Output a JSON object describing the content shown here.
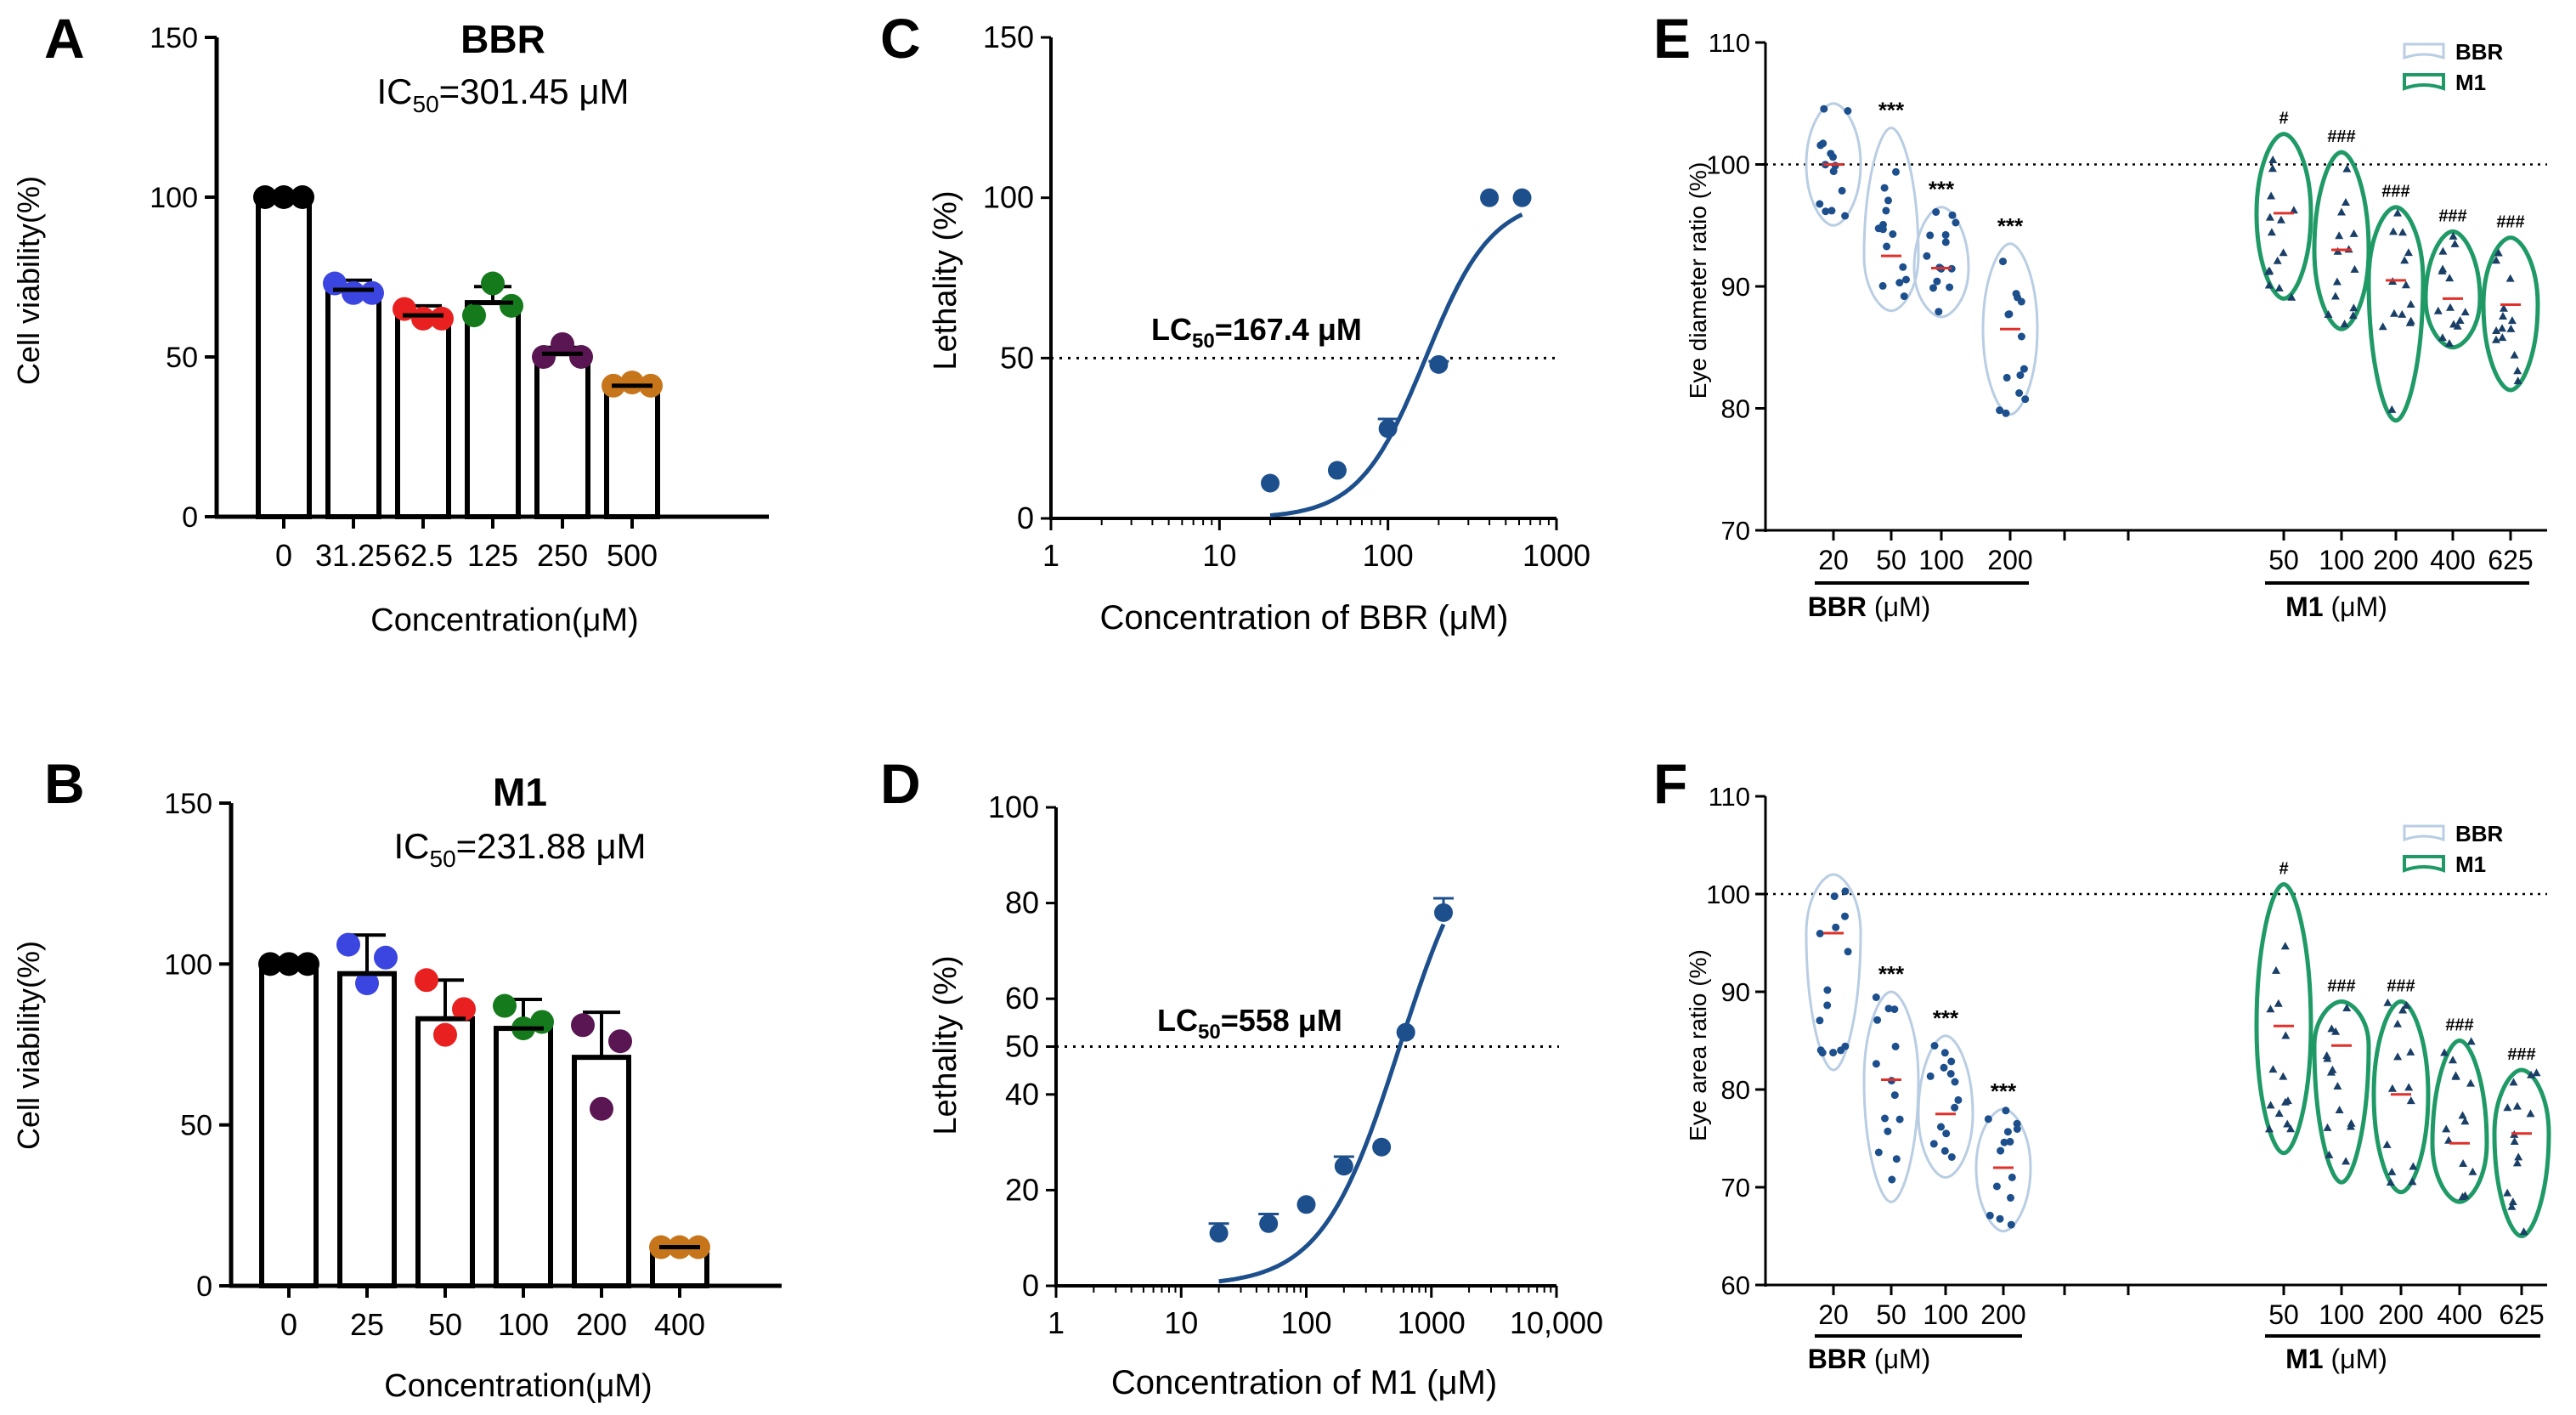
{
  "panels": {
    "A": {
      "letter": "A",
      "title": "BBR",
      "ic50_prefix": "IC",
      "ic50_sub": "50",
      "ic50_value": "=301.45 μM",
      "ylabel": "Cell viability(%)",
      "xlabel": "Concentration(μM)",
      "yticks": [
        "0",
        "50",
        "100",
        "150"
      ]
    },
    "B": {
      "letter": "B",
      "title": "M1",
      "ic50_prefix": "IC",
      "ic50_sub": "50",
      "ic50_value": "=231.88 μM",
      "ylabel": "Cell viability(%)",
      "xlabel": "Concentration(μM)",
      "yticks": [
        "0",
        "50",
        "100",
        "150"
      ]
    },
    "C": {
      "letter": "C",
      "ylabel": "Lethality (%)",
      "xlabel": "Concentration of BBR (μM)",
      "lc50_prefix": "LC",
      "lc50_sub": "50",
      "lc50_value": "=167.4 μM",
      "xticks": [
        "1",
        "10",
        "100",
        "1000"
      ],
      "yticks": [
        "0",
        "50",
        "100",
        "150"
      ]
    },
    "D": {
      "letter": "D",
      "ylabel": "Lethality (%)",
      "xlabel": "Concentration of M1 (μM)",
      "lc50_prefix": "LC",
      "lc50_sub": "50",
      "lc50_value": "=558 μM",
      "xticks": [
        "1",
        "10",
        "100",
        "1000",
        "10,000"
      ],
      "yticks": [
        "0",
        "20",
        "40",
        "50",
        "60",
        "80",
        "100"
      ]
    },
    "E": {
      "letter": "E",
      "ylabel": "Eye diameter ratio (%)",
      "yticks": [
        "70",
        "80",
        "90",
        "100",
        "110"
      ],
      "group1": "BBR",
      "group2": "M1",
      "unit": " (μM)",
      "legend": [
        "BBR",
        "M1"
      ]
    },
    "F": {
      "letter": "F",
      "ylabel": "Eye area ratio (%)",
      "yticks": [
        "60",
        "70",
        "80",
        "90",
        "100",
        "110"
      ],
      "group1": "BBR",
      "group2": "M1",
      "unit": " (μM)",
      "legend": [
        "BBR",
        "M1"
      ]
    }
  },
  "colors": {
    "black": "#000000",
    "blue": "#3b45e0",
    "red": "#e8201f",
    "green": "#157a1c",
    "purple": "#5a1652",
    "orange": "#c7751a",
    "navy": "#1c4f8c",
    "bbr_violin": "#b9cde3",
    "m1_violin": "#1f9a66",
    "median": "#e0302a"
  },
  "chart_data": [
    {
      "id": "A",
      "type": "bar",
      "title": "BBR",
      "subtitle": "IC50=301.45 μM",
      "xlabel": "Concentration(μM)",
      "ylabel": "Cell viability(%)",
      "ylim": [
        0,
        150
      ],
      "categories": [
        "0",
        "31.25",
        "62.5",
        "125",
        "250",
        "500"
      ],
      "values": [
        100,
        71,
        63,
        67,
        51,
        41
      ],
      "errors": [
        1,
        3,
        3,
        5,
        2,
        1
      ],
      "points": [
        [
          100,
          100,
          100
        ],
        [
          73,
          70,
          70
        ],
        [
          65,
          62,
          62
        ],
        [
          63,
          73,
          66
        ],
        [
          50,
          54,
          50
        ],
        [
          41,
          42,
          41
        ]
      ],
      "point_colors": [
        "black",
        "blue",
        "red",
        "green",
        "purple",
        "orange"
      ]
    },
    {
      "id": "B",
      "type": "bar",
      "title": "M1",
      "subtitle": "IC50=231.88 μM",
      "xlabel": "Concentration(μM)",
      "ylabel": "Cell viability(%)",
      "ylim": [
        0,
        150
      ],
      "categories": [
        "0",
        "25",
        "50",
        "100",
        "200",
        "400"
      ],
      "values": [
        100,
        97,
        83,
        80,
        71,
        12
      ],
      "errors": [
        1,
        12,
        12,
        9,
        14,
        1
      ],
      "points": [
        [
          100,
          100,
          100
        ],
        [
          106,
          94,
          102
        ],
        [
          95,
          78,
          86
        ],
        [
          87,
          80,
          82
        ],
        [
          81,
          55,
          76
        ],
        [
          12,
          12,
          12
        ]
      ],
      "point_colors": [
        "black",
        "blue",
        "red",
        "green",
        "purple",
        "orange"
      ]
    },
    {
      "id": "C",
      "type": "scatter",
      "xscale": "log",
      "xlim": [
        1,
        1000
      ],
      "ylim": [
        0,
        150
      ],
      "xlabel": "Concentration of BBR (μM)",
      "ylabel": "Lethality (%)",
      "annotation": "LC50=167.4 μM",
      "reference_line_y": 50,
      "x": [
        20,
        50,
        100,
        200,
        400,
        625
      ],
      "y": [
        11,
        15,
        28,
        48,
        100,
        100
      ],
      "errors": [
        0,
        0,
        3,
        1,
        0,
        0
      ],
      "fit": {
        "lc50": 167.4,
        "hill": 2.2,
        "top": 100,
        "x_from": 20,
        "x_to": 625
      }
    },
    {
      "id": "D",
      "type": "scatter",
      "xscale": "log",
      "xlim": [
        1,
        10000
      ],
      "ylim": [
        0,
        100
      ],
      "xlabel": "Concentration of M1 (μM)",
      "ylabel": "Lethality (%)",
      "annotation": "LC50=558 μM",
      "reference_line_y": 50,
      "x": [
        20,
        50,
        100,
        200,
        400,
        625,
        1250
      ],
      "y": [
        11,
        13,
        17,
        25,
        29,
        53,
        78
      ],
      "errors": [
        2,
        2,
        0,
        2,
        0,
        0,
        3
      ],
      "fit": {
        "lc50": 558,
        "hill": 1.4,
        "top": 100,
        "x_from": 20,
        "x_to": 1250
      }
    },
    {
      "id": "E",
      "type": "violin",
      "ylabel": "Eye diameter ratio (%)",
      "ylim": [
        70,
        110
      ],
      "reference_line_y": 100,
      "groups": [
        {
          "name": "BBR",
          "categories": [
            "20",
            "50",
            "100",
            "200"
          ],
          "min": [
            95,
            88,
            87.5,
            79.5
          ],
          "max": [
            105,
            103,
            96.5,
            93.5
          ],
          "median": [
            100,
            92.5,
            91.5,
            86.5
          ],
          "annotations": [
            "",
            "***",
            "***",
            "***"
          ]
        },
        {
          "name": "M1",
          "categories": [
            "50",
            "100",
            "200",
            "400",
            "625"
          ],
          "min": [
            89,
            86.5,
            79,
            85,
            81.5
          ],
          "max": [
            102.5,
            101,
            96.5,
            94.5,
            94
          ],
          "median": [
            96,
            93,
            90.5,
            89,
            88.5
          ],
          "annotations": [
            "#",
            "###",
            "###",
            "###",
            "###"
          ]
        }
      ]
    },
    {
      "id": "F",
      "type": "violin",
      "ylabel": "Eye area ratio (%)",
      "ylim": [
        60,
        110
      ],
      "reference_line_y": 100,
      "groups": [
        {
          "name": "BBR",
          "categories": [
            "20",
            "50",
            "100",
            "200"
          ],
          "min": [
            82,
            68.5,
            71,
            65.5
          ],
          "max": [
            102,
            90,
            85.5,
            78
          ],
          "median": [
            96,
            81,
            77.5,
            72
          ],
          "annotations": [
            "",
            "***",
            "***",
            "***"
          ]
        },
        {
          "name": "M1",
          "categories": [
            "50",
            "100",
            "200",
            "400",
            "625"
          ],
          "min": [
            73.5,
            70.5,
            69.5,
            68.5,
            65
          ],
          "max": [
            101,
            89,
            89,
            85,
            82
          ],
          "median": [
            86.5,
            84.5,
            79.5,
            74.5,
            75.5
          ],
          "annotations": [
            "#",
            "###",
            "###",
            "###",
            "###"
          ]
        }
      ]
    }
  ]
}
